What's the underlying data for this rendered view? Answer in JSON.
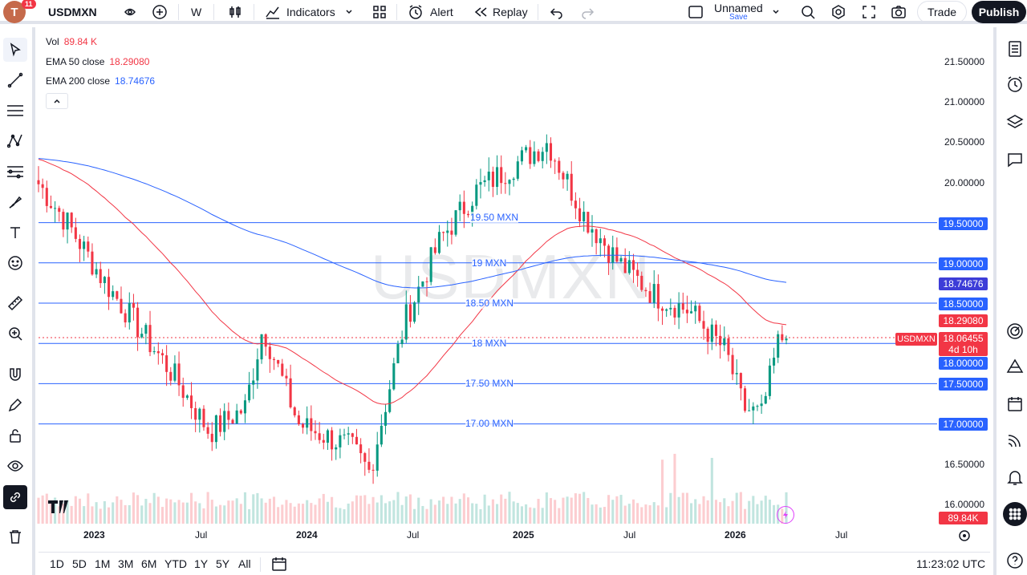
{
  "toolbar": {
    "avatar_letter": "T",
    "notification_count": "11",
    "symbol": "USDMXN",
    "interval": "W",
    "indicators_label": "Indicators",
    "alert_label": "Alert",
    "replay_label": "Replay",
    "layout_name": "Unnamed",
    "layout_status": "Save",
    "trade_label": "Trade",
    "publish_label": "Publish"
  },
  "legend": {
    "vol_label": "Vol",
    "vol_value": "89.84 K",
    "ema50_label": "EMA 50 close",
    "ema50_value": "18.29080",
    "ema200_label": "EMA 200 close",
    "ema200_value": "18.74676"
  },
  "watermark": "USDMXN",
  "price_scale": {
    "ticks": [
      "21.50000",
      "21.00000",
      "20.50000",
      "20.00000",
      "16.50000",
      "16.00000"
    ],
    "horizontal_lines": [
      {
        "label": "19.50 MXN",
        "price_tag": "19.50000"
      },
      {
        "label": "19 MXN",
        "price_tag": "19.00000"
      },
      {
        "label": "18.50 MXN",
        "price_tag": "18.50000"
      },
      {
        "label": "18 MXN",
        "price_tag": "18.00000"
      },
      {
        "label": "17.50 MXN",
        "price_tag": "17.50000"
      },
      {
        "label": "17.00 MXN",
        "price_tag": "17.00000"
      }
    ],
    "ema200_tag": "18.74676",
    "ema50_tag": "18.29080",
    "last_price": "18.06455",
    "countdown": "4d 10h",
    "symbol_tag": "USDMXN",
    "volume_tag": "89.84K"
  },
  "time_scale": [
    "2023",
    "Jul",
    "2024",
    "Jul",
    "2025",
    "Jul",
    "2026",
    "Jul"
  ],
  "ranges": [
    "1D",
    "5D",
    "1M",
    "3M",
    "6M",
    "YTD",
    "1Y",
    "5Y",
    "All"
  ],
  "clock": "11:23:02 UTC",
  "colors": {
    "up": "#089981",
    "down": "#f23645",
    "ema50": "#f23645",
    "ema200": "#2962ff",
    "hline": "#2962ff"
  },
  "chart_data": {
    "type": "candlestick",
    "symbol": "USDMXN",
    "interval": "W",
    "ylim": [
      15.8,
      21.6
    ],
    "x_start": "2022-09",
    "x_end": "2026-07",
    "ohlc_anchor_closes": [
      [
        "2022-09",
        20.1
      ],
      [
        "2022-11",
        19.5
      ],
      [
        "2023-01",
        18.8
      ],
      [
        "2023-03",
        18.2
      ],
      [
        "2023-05",
        17.6
      ],
      [
        "2023-07",
        16.9
      ],
      [
        "2023-09",
        17.2
      ],
      [
        "2023-10",
        18.2
      ],
      [
        "2023-12",
        17.0
      ],
      [
        "2024-03",
        16.7
      ],
      [
        "2024-04",
        16.4
      ],
      [
        "2024-06",
        18.3
      ],
      [
        "2024-08",
        19.3
      ],
      [
        "2024-10",
        19.9
      ],
      [
        "2024-12",
        20.2
      ],
      [
        "2025-02",
        20.5
      ],
      [
        "2025-04",
        19.6
      ],
      [
        "2025-06",
        19.0
      ],
      [
        "2025-08",
        18.6
      ],
      [
        "2025-10",
        18.4
      ],
      [
        "2025-12",
        17.9
      ],
      [
        "2026-01",
        17.2
      ],
      [
        "2026-02",
        17.1
      ],
      [
        "2026-03",
        18.06
      ]
    ],
    "ema50_last": 18.2908,
    "ema200_last": 18.74676,
    "volume_last": "89.84K"
  }
}
